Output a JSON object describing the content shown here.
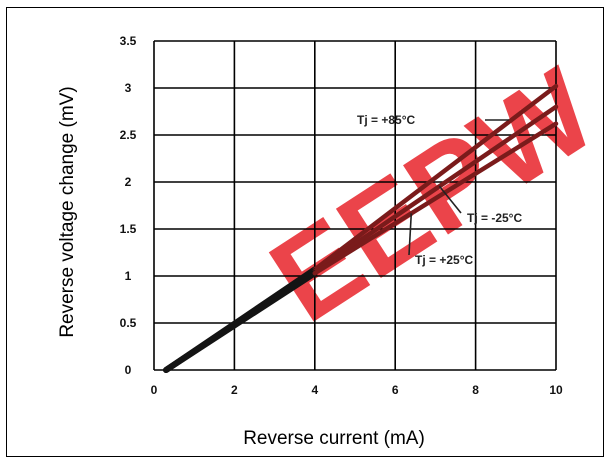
{
  "chart_data": {
    "type": "line",
    "xlabel": "Reverse current (mA)",
    "ylabel": "Reverse voltage change (mV)",
    "xlim": [
      0,
      10
    ],
    "ylim": [
      0,
      3.5
    ],
    "x_ticks": [
      "0",
      "2",
      "4",
      "6",
      "8",
      "10"
    ],
    "y_ticks": [
      "0",
      "0.5",
      "1",
      "1.5",
      "2",
      "2.5",
      "3",
      "3.5"
    ],
    "grid": true,
    "series": [
      {
        "name": "Tj = +85°C",
        "x": [
          0.3,
          4,
          10
        ],
        "y": [
          0,
          1.07,
          3.02
        ]
      },
      {
        "name": "Tj = -25°C",
        "x": [
          0.3,
          4,
          10
        ],
        "y": [
          0,
          1.05,
          2.8
        ]
      },
      {
        "name": "Tj = +25°C",
        "x": [
          0.3,
          4,
          10
        ],
        "y": [
          0,
          1.03,
          2.62
        ]
      }
    ],
    "annotations": [
      {
        "label": "Tj = +85°C",
        "series": 0
      },
      {
        "label": "Tj = -25°C",
        "series": 1
      },
      {
        "label": "Tj = +25°C",
        "series": 2
      }
    ],
    "watermark": "EEPW",
    "colors": {
      "line_dark": "#141414",
      "line_upper": "#7a1b1b",
      "watermark": "#e8242b",
      "grid": "#000000"
    }
  }
}
